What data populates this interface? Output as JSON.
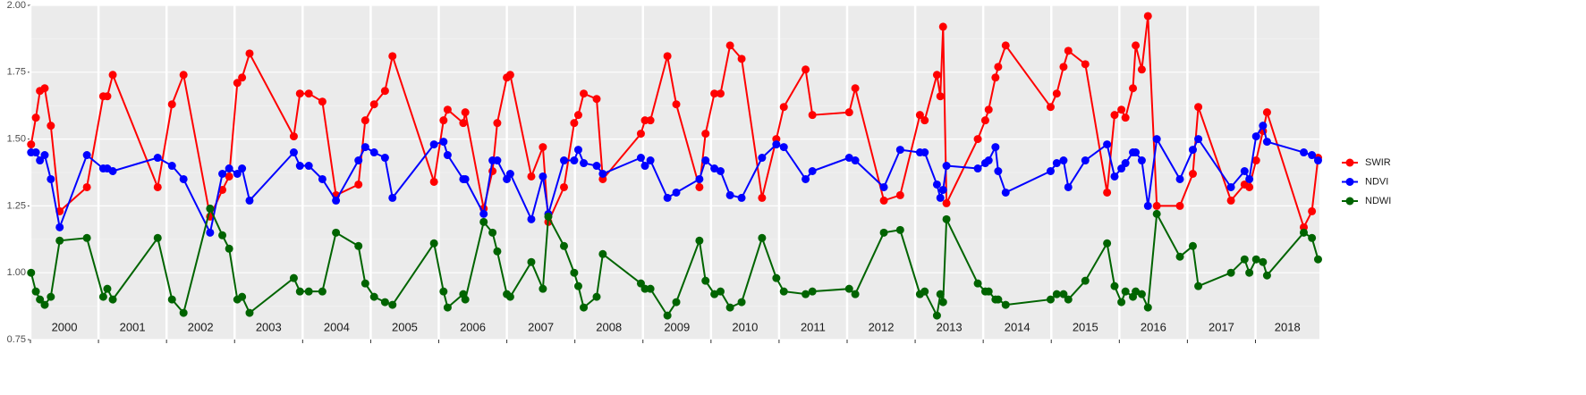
{
  "chart_data": {
    "type": "line",
    "grid": true,
    "legend": "right",
    "x": [
      2000.01,
      2000.08,
      2000.14,
      2000.21,
      2000.3,
      2000.43,
      2000.83,
      2001.07,
      2001.13,
      2001.21,
      2001.87,
      2002.08,
      2002.25,
      2002.64,
      2002.82,
      2002.92,
      2003.04,
      2003.11,
      2003.22,
      2003.87,
      2003.96,
      2004.09,
      2004.29,
      2004.49,
      2004.82,
      2004.92,
      2005.05,
      2005.21,
      2005.32,
      2005.93,
      2006.07,
      2006.13,
      2006.36,
      2006.39,
      2006.66,
      2006.79,
      2006.86,
      2007.0,
      2007.05,
      2007.36,
      2007.53,
      2007.61,
      2007.84,
      2007.99,
      2008.05,
      2008.13,
      2008.32,
      2008.41,
      2008.97,
      2009.03,
      2009.11,
      2009.36,
      2009.49,
      2009.83,
      2009.92,
      2010.05,
      2010.14,
      2010.28,
      2010.45,
      2010.75,
      2010.96,
      2011.07,
      2011.39,
      2011.49,
      2012.03,
      2012.12,
      2012.54,
      2012.78,
      2013.07,
      2013.14,
      2013.32,
      2013.37,
      2013.41,
      2013.46,
      2013.92,
      2014.03,
      2014.08,
      2014.18,
      2014.22,
      2014.33,
      2014.99,
      2015.08,
      2015.18,
      2015.25,
      2015.5,
      2015.82,
      2015.93,
      2016.03,
      2016.09,
      2016.2,
      2016.24,
      2016.33,
      2016.42,
      2016.55,
      2016.89,
      2017.08,
      2017.16,
      2017.64,
      2017.84,
      2017.91,
      2018.01,
      2018.11,
      2018.17,
      2018.71,
      2018.83,
      2018.92
    ],
    "series": [
      {
        "name": "SWIR",
        "color": "#ff0000",
        "values": [
          1.48,
          1.58,
          1.68,
          1.69,
          1.55,
          1.23,
          1.32,
          1.66,
          1.66,
          1.74,
          1.32,
          1.63,
          1.74,
          1.21,
          1.31,
          1.36,
          1.71,
          1.73,
          1.82,
          1.51,
          1.67,
          1.67,
          1.64,
          1.29,
          1.33,
          1.57,
          1.63,
          1.68,
          1.81,
          1.34,
          1.57,
          1.61,
          1.56,
          1.6,
          1.24,
          1.38,
          1.56,
          1.73,
          1.74,
          1.36,
          1.47,
          1.19,
          1.32,
          1.56,
          1.59,
          1.67,
          1.65,
          1.35,
          1.52,
          1.57,
          1.57,
          1.81,
          1.63,
          1.32,
          1.52,
          1.67,
          1.67,
          1.85,
          1.8,
          1.28,
          1.5,
          1.62,
          1.76,
          1.59,
          1.6,
          1.69,
          1.27,
          1.29,
          1.59,
          1.57,
          1.74,
          1.66,
          1.92,
          1.26,
          1.5,
          1.57,
          1.61,
          1.73,
          1.77,
          1.85,
          1.62,
          1.67,
          1.77,
          1.83,
          1.78,
          1.3,
          1.59,
          1.61,
          1.58,
          1.69,
          1.85,
          1.76,
          1.96,
          1.25,
          1.25,
          1.37,
          1.62,
          1.27,
          1.33,
          1.32,
          1.42,
          1.53,
          1.6,
          1.17,
          1.23,
          1.43
        ]
      },
      {
        "name": "NDVI",
        "color": "#0000ff",
        "values": [
          1.45,
          1.45,
          1.42,
          1.44,
          1.35,
          1.17,
          1.44,
          1.39,
          1.39,
          1.38,
          1.43,
          1.4,
          1.35,
          1.15,
          1.37,
          1.39,
          1.37,
          1.39,
          1.27,
          1.45,
          1.4,
          1.4,
          1.35,
          1.27,
          1.42,
          1.47,
          1.45,
          1.43,
          1.28,
          1.48,
          1.49,
          1.44,
          1.35,
          1.35,
          1.22,
          1.42,
          1.42,
          1.35,
          1.37,
          1.2,
          1.36,
          1.22,
          1.42,
          1.42,
          1.46,
          1.41,
          1.4,
          1.37,
          1.43,
          1.4,
          1.42,
          1.28,
          1.3,
          1.35,
          1.42,
          1.39,
          1.38,
          1.29,
          1.28,
          1.43,
          1.48,
          1.47,
          1.35,
          1.38,
          1.43,
          1.42,
          1.32,
          1.46,
          1.45,
          1.45,
          1.33,
          1.28,
          1.31,
          1.4,
          1.39,
          1.41,
          1.42,
          1.47,
          1.38,
          1.3,
          1.38,
          1.41,
          1.42,
          1.32,
          1.42,
          1.48,
          1.36,
          1.39,
          1.41,
          1.45,
          1.45,
          1.42,
          1.25,
          1.5,
          1.35,
          1.46,
          1.5,
          1.32,
          1.38,
          1.35,
          1.51,
          1.55,
          1.49,
          1.45,
          1.44,
          1.42
        ]
      },
      {
        "name": "NDWI",
        "color": "#006400",
        "values": [
          1.0,
          0.93,
          0.9,
          0.88,
          0.91,
          1.12,
          1.13,
          0.91,
          0.94,
          0.9,
          1.13,
          0.9,
          0.85,
          1.24,
          1.14,
          1.09,
          0.9,
          0.91,
          0.85,
          0.98,
          0.93,
          0.93,
          0.93,
          1.15,
          1.1,
          0.96,
          0.91,
          0.89,
          0.88,
          1.11,
          0.93,
          0.87,
          0.92,
          0.9,
          1.19,
          1.15,
          1.08,
          0.92,
          0.91,
          1.04,
          0.94,
          1.21,
          1.1,
          1.0,
          0.95,
          0.87,
          0.91,
          1.07,
          0.96,
          0.94,
          0.94,
          0.84,
          0.89,
          1.12,
          0.97,
          0.92,
          0.93,
          0.87,
          0.89,
          1.13,
          0.98,
          0.93,
          0.92,
          0.93,
          0.94,
          0.92,
          1.15,
          1.16,
          0.92,
          0.93,
          0.84,
          0.92,
          0.89,
          1.2,
          0.96,
          0.93,
          0.93,
          0.9,
          0.9,
          0.88,
          0.9,
          0.92,
          0.92,
          0.9,
          0.97,
          1.11,
          0.95,
          0.89,
          0.93,
          0.91,
          0.93,
          0.92,
          0.87,
          1.22,
          1.06,
          1.1,
          0.95,
          1.0,
          1.05,
          1.0,
          1.05,
          1.04,
          0.99,
          1.15,
          1.13,
          1.05
        ]
      }
    ],
    "xlim": [
      2000,
      2018.94
    ],
    "xticks": [
      2000,
      2001,
      2002,
      2003,
      2004,
      2005,
      2006,
      2007,
      2008,
      2009,
      2010,
      2011,
      2012,
      2013,
      2014,
      2015,
      2016,
      2017,
      2018
    ],
    "ylim": [
      0.75,
      2.0
    ],
    "yticks": [
      0.75,
      {
        "value": 1,
        "label": "1.00"
      },
      1.25,
      {
        "value": 1.5,
        "label": "1.50"
      },
      1.75,
      {
        "value": 2,
        "label": "2.00"
      }
    ]
  }
}
